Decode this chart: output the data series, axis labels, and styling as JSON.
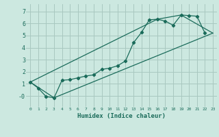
{
  "title": "",
  "xlabel": "Humidex (Indice chaleur)",
  "ylabel": "",
  "background_color": "#cce8e0",
  "grid_color": "#a8c8c0",
  "line_color": "#1a6b5a",
  "xlim": [
    -0.5,
    23.5
  ],
  "ylim": [
    -0.9,
    7.6
  ],
  "xticks": [
    0,
    1,
    2,
    3,
    4,
    5,
    6,
    7,
    8,
    9,
    10,
    11,
    12,
    13,
    14,
    15,
    16,
    17,
    18,
    19,
    20,
    21,
    22,
    23
  ],
  "yticks": [
    0,
    1,
    2,
    3,
    4,
    5,
    6,
    7
  ],
  "ytick_labels": [
    "-0",
    "1",
    "2",
    "3",
    "4",
    "5",
    "6",
    "7"
  ],
  "series1_x": [
    0,
    1,
    2,
    3,
    4,
    5,
    6,
    7,
    8,
    9,
    10,
    11,
    12,
    13,
    14,
    15,
    16,
    17,
    18,
    19,
    20,
    21,
    22
  ],
  "series1_y": [
    1.15,
    0.65,
    -0.05,
    -0.15,
    1.3,
    1.35,
    1.5,
    1.65,
    1.75,
    2.2,
    2.3,
    2.5,
    2.9,
    4.4,
    5.25,
    6.3,
    6.35,
    6.2,
    5.85,
    6.7,
    6.65,
    6.6,
    5.2
  ],
  "series2_x": [
    0,
    3,
    23
  ],
  "series2_y": [
    1.15,
    -0.15,
    5.2
  ],
  "series3_x": [
    0,
    16,
    19,
    23
  ],
  "series3_y": [
    1.15,
    6.35,
    6.7,
    5.2
  ]
}
